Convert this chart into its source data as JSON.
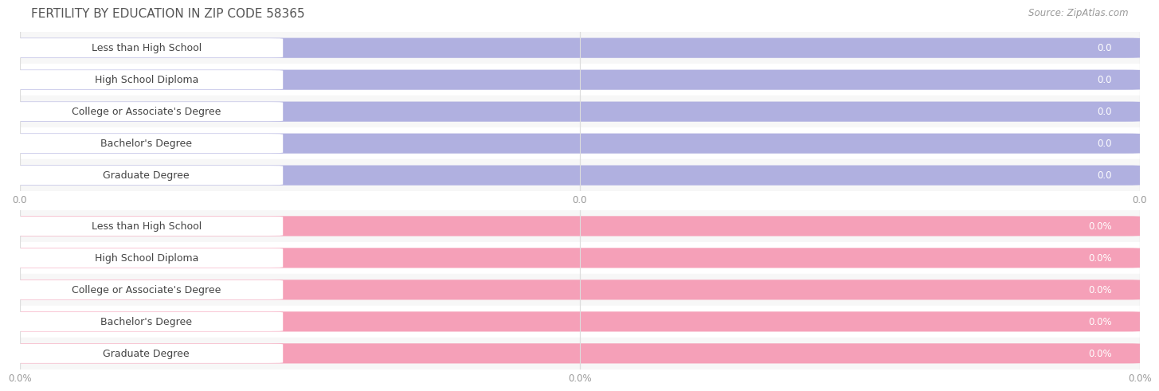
{
  "title": "FERTILITY BY EDUCATION IN ZIP CODE 58365",
  "source": "Source: ZipAtlas.com",
  "categories": [
    "Less than High School",
    "High School Diploma",
    "College or Associate's Degree",
    "Bachelor's Degree",
    "Graduate Degree"
  ],
  "values_top": [
    0.0,
    0.0,
    0.0,
    0.0,
    0.0
  ],
  "values_bottom": [
    0.0,
    0.0,
    0.0,
    0.0,
    0.0
  ],
  "bar_color_top": "#b0b0e0",
  "bar_color_bottom": "#f5a0b8",
  "bg_bar_color": "#e8e8f0",
  "row_bg_even": "#f7f7f7",
  "row_bg_odd": "#ffffff",
  "xtick_labels_top": [
    "0.0",
    "0.0",
    "0.0"
  ],
  "xtick_labels_bottom": [
    "0.0%",
    "0.0%",
    "0.0%"
  ],
  "title_fontsize": 11,
  "label_fontsize": 9,
  "value_fontsize": 8.5,
  "source_fontsize": 8.5,
  "title_color": "#555555",
  "source_color": "#999999",
  "label_text_color": "#444444",
  "value_text_color": "#ffffff",
  "tick_color": "#999999",
  "grid_color": "#dddddd"
}
